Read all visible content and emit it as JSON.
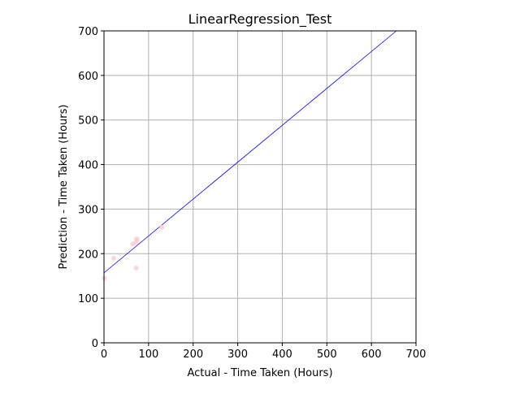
{
  "chart_data": {
    "type": "scatter",
    "title": "LinearRegression_Test",
    "xlabel": "Actual - Time Taken (Hours)",
    "ylabel": "Prediction - Time Taken (Hours)",
    "xlim": [
      0,
      700
    ],
    "ylim": [
      0,
      700
    ],
    "x_ticks": [
      0,
      100,
      200,
      300,
      400,
      500,
      600,
      700
    ],
    "y_ticks": [
      0,
      100,
      200,
      300,
      400,
      500,
      600,
      700
    ],
    "x_tick_labels": [
      "0",
      "100",
      "200",
      "300",
      "400",
      "500",
      "600",
      "700"
    ],
    "y_tick_labels": [
      "0",
      "100",
      "200",
      "300",
      "400",
      "500",
      "600",
      "700"
    ],
    "grid": true,
    "points": {
      "color": "#ffcccc",
      "x": [
        1,
        22,
        65,
        72,
        73,
        74,
        72,
        130
      ],
      "y": [
        145,
        190,
        222,
        226,
        232,
        233,
        168,
        259
      ]
    },
    "fit_line": {
      "color": "#0000ff",
      "x": [
        0,
        656
      ],
      "y": [
        157,
        700
      ]
    }
  }
}
